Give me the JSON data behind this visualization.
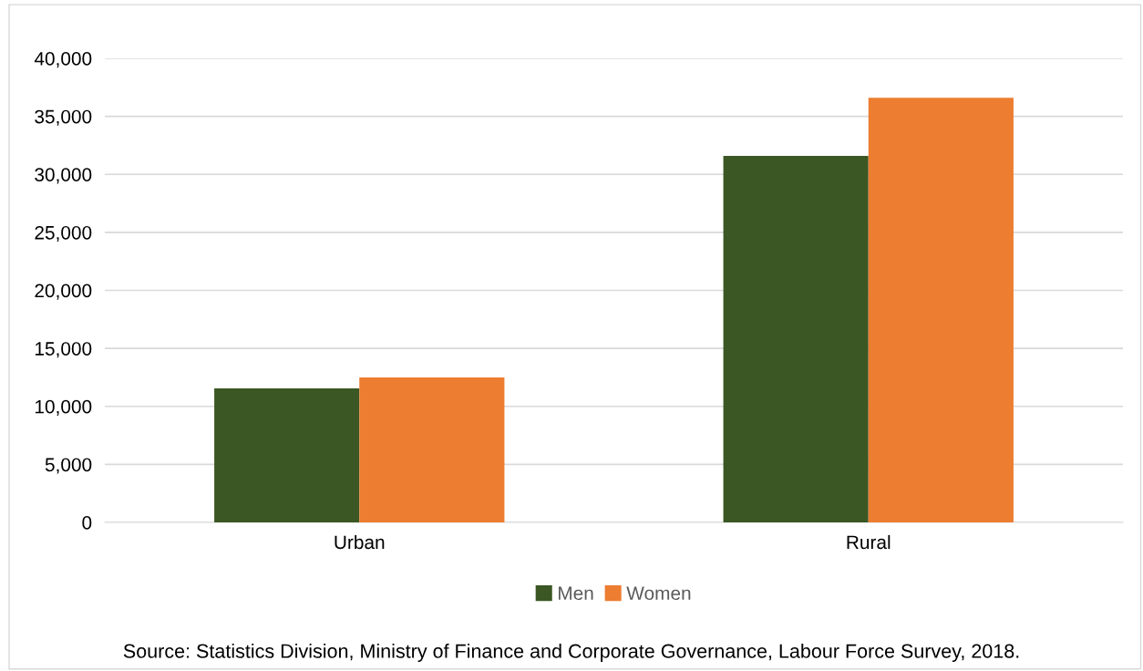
{
  "chart_data": {
    "type": "bar",
    "categories": [
      "Urban",
      "Rural"
    ],
    "series": [
      {
        "name": "Men",
        "color": "#3b5724",
        "values": [
          11550,
          31600
        ]
      },
      {
        "name": "Women",
        "color": "#ed7d31",
        "values": [
          12500,
          36600
        ]
      }
    ],
    "ylim": [
      0,
      40000
    ],
    "yticks": [
      {
        "value": 0,
        "label": "0"
      },
      {
        "value": 5000,
        "label": "5,000"
      },
      {
        "value": 10000,
        "label": "10,000"
      },
      {
        "value": 15000,
        "label": "15,000"
      },
      {
        "value": 20000,
        "label": "20,000"
      },
      {
        "value": 25000,
        "label": "25,000"
      },
      {
        "value": 30000,
        "label": "30,000"
      },
      {
        "value": 35000,
        "label": "35,000"
      },
      {
        "value": 40000,
        "label": "40,000"
      }
    ],
    "grid": "y",
    "legend": "bottom",
    "annotations": [
      "Source: Statistics Division, Ministry of Finance and Corporate Governance, Labour Force Survey, 2018."
    ]
  }
}
